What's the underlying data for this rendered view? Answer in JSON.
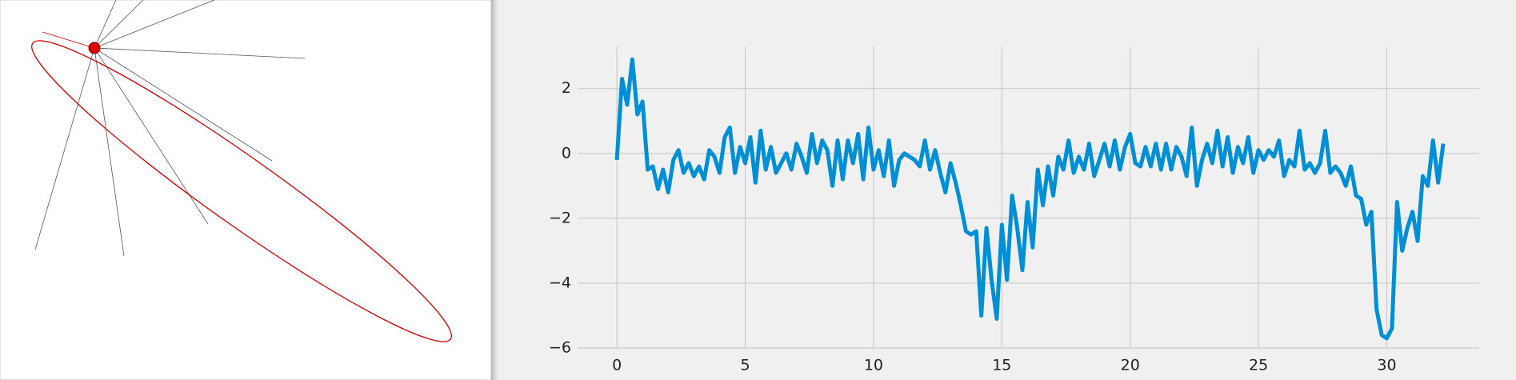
{
  "chart_data": {
    "type": "line",
    "x": [
      0,
      0.2,
      0.4,
      0.6,
      0.8,
      1,
      1.2,
      1.4,
      1.6,
      1.8,
      2,
      2.2,
      2.4,
      2.6,
      2.8,
      3,
      3.2,
      3.4,
      3.6,
      3.8,
      4,
      4.2,
      4.4,
      4.6,
      4.8,
      5,
      5.2,
      5.4,
      5.6,
      5.8,
      6,
      6.2,
      6.4,
      6.6,
      6.8,
      7,
      7.2,
      7.4,
      7.6,
      7.8,
      8,
      8.2,
      8.4,
      8.6,
      8.8,
      9,
      9.2,
      9.4,
      9.6,
      9.8,
      10,
      10.2,
      10.4,
      10.6,
      10.8,
      11,
      11.2,
      11.4,
      11.6,
      11.8,
      12,
      12.2,
      12.4,
      12.6,
      12.8,
      13,
      13.2,
      13.4,
      13.6,
      13.8,
      14,
      14.2,
      14.4,
      14.6,
      14.8,
      15,
      15.2,
      15.4,
      15.6,
      15.8,
      16,
      16.2,
      16.4,
      16.6,
      16.8,
      17,
      17.2,
      17.4,
      17.6,
      17.8,
      18,
      18.2,
      18.4,
      18.6,
      18.8,
      19,
      19.2,
      19.4,
      19.6,
      19.8,
      20,
      20.2,
      20.4,
      20.6,
      20.8,
      21,
      21.2,
      21.4,
      21.6,
      21.8,
      22,
      22.2,
      22.4,
      22.6,
      22.8,
      23,
      23.2,
      23.4,
      23.6,
      23.8,
      24,
      24.2,
      24.4,
      24.6,
      24.8,
      25,
      25.2,
      25.4,
      25.6,
      25.8,
      26,
      26.2,
      26.4,
      26.6,
      26.8,
      27,
      27.2,
      27.4,
      27.6,
      27.8,
      28,
      28.2,
      28.4,
      28.6,
      28.8,
      29,
      29.2,
      29.4,
      29.6,
      29.8,
      30,
      30.2,
      30.4,
      30.6,
      30.8,
      31,
      31.2,
      31.4,
      31.6,
      31.8,
      32,
      32.2
    ],
    "values": [
      -0.2,
      2.3,
      1.5,
      2.9,
      1.2,
      1.6,
      -0.5,
      -0.4,
      -1.1,
      -0.5,
      -1.2,
      -0.2,
      0.1,
      -0.6,
      -0.3,
      -0.7,
      -0.4,
      -0.8,
      0.1,
      -0.1,
      -0.6,
      0.5,
      0.8,
      -0.6,
      0.2,
      -0.3,
      0.5,
      -0.9,
      0.7,
      -0.5,
      0.2,
      -0.6,
      -0.3,
      0.0,
      -0.5,
      0.3,
      -0.1,
      -0.6,
      0.6,
      -0.3,
      0.4,
      0.1,
      -1.0,
      0.4,
      -0.8,
      0.4,
      -0.3,
      0.6,
      -0.8,
      0.8,
      -0.5,
      0.1,
      -0.7,
      0.4,
      -1.0,
      -0.2,
      0.0,
      -0.1,
      -0.2,
      -0.4,
      0.4,
      -0.5,
      0.1,
      -0.6,
      -1.2,
      -0.3,
      -0.9,
      -1.6,
      -2.4,
      -2.5,
      -2.4,
      -5.0,
      -2.3,
      -3.9,
      -5.1,
      -2.2,
      -3.9,
      -1.3,
      -2.3,
      -3.6,
      -1.5,
      -2.9,
      -0.5,
      -1.6,
      -0.4,
      -1.3,
      -0.1,
      -0.5,
      0.4,
      -0.6,
      -0.1,
      -0.5,
      0.3,
      -0.7,
      -0.2,
      0.3,
      -0.4,
      0.4,
      -0.5,
      0.2,
      0.6,
      -0.3,
      -0.4,
      0.2,
      -0.4,
      0.3,
      -0.5,
      0.3,
      -0.5,
      0.2,
      -0.1,
      -0.7,
      0.8,
      -1.0,
      -0.2,
      0.3,
      -0.3,
      0.7,
      -0.4,
      0.5,
      -0.6,
      0.2,
      -0.3,
      0.5,
      -0.6,
      0.1,
      -0.2,
      0.1,
      -0.1,
      0.4,
      -0.7,
      -0.2,
      -0.4,
      0.7,
      -0.5,
      -0.3,
      -0.6,
      -0.3,
      0.7,
      -0.6,
      -0.4,
      -0.6,
      -1.0,
      -0.4,
      -1.3,
      -1.4,
      -2.2,
      -1.8,
      -4.8,
      -5.6,
      -5.7,
      -5.4,
      -1.5,
      -3.0,
      -2.3,
      -1.8,
      -2.7,
      -0.7,
      -1.0,
      0.4,
      -0.9,
      0.3
    ],
    "color": "#008fd5",
    "xlim": [
      -1.5,
      33.6
    ],
    "xticks": [
      0,
      5,
      10,
      15,
      20,
      25,
      30
    ],
    "ylim": [
      -6.0,
      3.3
    ],
    "yticks": [
      {
        "value": -6,
        "label": "−6"
      },
      {
        "value": -4,
        "label": "−4"
      },
      {
        "value": -2,
        "label": "−2"
      },
      0,
      2
    ],
    "grid": true
  }
}
